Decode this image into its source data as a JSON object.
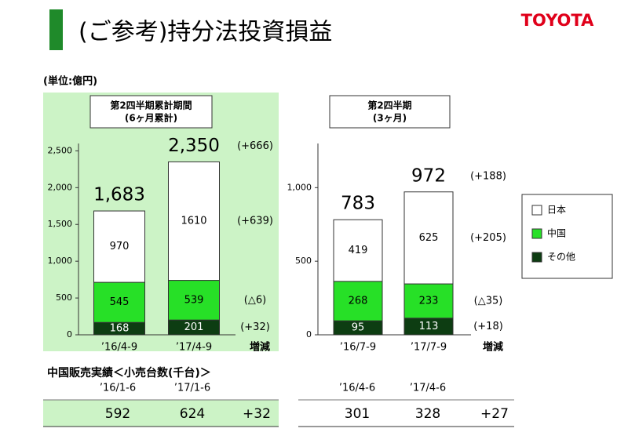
{
  "header": {
    "title": "(ご参考)持分法投資損益",
    "logo": "TOYOTA",
    "unit": "(単位:億円)"
  },
  "chart_data": [
    {
      "type": "bar",
      "stacked": true,
      "title": "第2四半期累計期間",
      "subtitle": "(6ヶ月累計)",
      "categories": [
        "’16/4-9",
        "’17/4-9"
      ],
      "series": [
        {
          "name": "その他",
          "color": "#0d3d12",
          "values": [
            168,
            201
          ],
          "change": "(+32)"
        },
        {
          "name": "中国",
          "color": "#27e027",
          "values": [
            545,
            539
          ],
          "change": "(△6)"
        },
        {
          "name": "日本",
          "color": "#ffffff",
          "values": [
            970,
            1610
          ],
          "change": "(+639)"
        }
      ],
      "totals": [
        1683,
        2350
      ],
      "totals_labels": [
        "1,683",
        "2,350"
      ],
      "total_change": "(+666)",
      "change_label": "増減",
      "ylim": [
        0,
        2600
      ],
      "yticks": [
        0,
        500,
        {
          "value": 1000,
          "label": "1,000"
        },
        {
          "value": 1500,
          "label": "1,500"
        },
        {
          "value": 2000,
          "label": "2,000"
        },
        {
          "value": 2500,
          "label": "2,500"
        }
      ],
      "background": "#ccf3c6",
      "legend": false
    },
    {
      "type": "bar",
      "stacked": true,
      "title": "第2四半期",
      "subtitle": "(3ヶ月)",
      "categories": [
        "’16/7-9",
        "’17/7-9"
      ],
      "series": [
        {
          "name": "その他",
          "color": "#0d3d12",
          "values": [
            95,
            113
          ],
          "change": "(+18)"
        },
        {
          "name": "中国",
          "color": "#27e027",
          "values": [
            268,
            233
          ],
          "change": "(△35)"
        },
        {
          "name": "日本",
          "color": "#ffffff",
          "values": [
            419,
            625
          ],
          "change": "(+205)"
        }
      ],
      "totals": [
        783,
        972
      ],
      "total_change": "(+188)",
      "change_label": "増減",
      "ylim": [
        0,
        1300
      ],
      "yticks": [
        0,
        500,
        {
          "value": 1000,
          "label": "1,000"
        }
      ],
      "background": "#ffffff",
      "legend": true
    }
  ],
  "china_sales": {
    "title": "中国販売実績＜小売台数(千台)＞",
    "groups": [
      {
        "periods": [
          "’16/1-6",
          "’17/1-6"
        ],
        "values": [
          592,
          624
        ],
        "change": "+32"
      },
      {
        "periods": [
          "’16/4-6",
          "’17/4-6"
        ],
        "values": [
          301,
          328
        ],
        "change": "+27"
      }
    ]
  }
}
